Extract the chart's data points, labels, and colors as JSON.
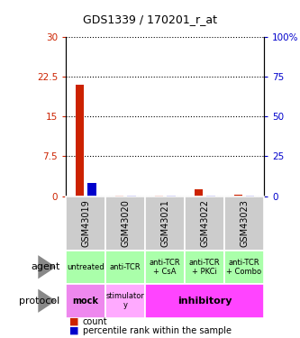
{
  "title": "GDS1339 / 170201_r_at",
  "samples": [
    "GSM43019",
    "GSM43020",
    "GSM43021",
    "GSM43022",
    "GSM43023"
  ],
  "count_values": [
    21.0,
    0.15,
    0.15,
    1.2,
    0.25
  ],
  "percentile_values": [
    8.5,
    0.4,
    0.3,
    0.5,
    0.4
  ],
  "left_ylim": [
    0,
    30
  ],
  "right_ylim": [
    0,
    100
  ],
  "left_ticks": [
    0,
    7.5,
    15,
    22.5,
    30
  ],
  "right_ticks": [
    0,
    25,
    50,
    75,
    100
  ],
  "left_tick_labels": [
    "0",
    "7.5",
    "15",
    "22.5",
    "30"
  ],
  "right_tick_labels": [
    "0",
    "25",
    "50",
    "75",
    "100%"
  ],
  "count_color": "#cc2200",
  "percentile_color": "#0000cc",
  "agent_labels": [
    "untreated",
    "anti-TCR",
    "anti-TCR\n+ CsA",
    "anti-TCR\n+ PKCi",
    "anti-TCR\n+ Combo"
  ],
  "agent_bg": "#aaffaa",
  "sample_bg": "#cccccc",
  "protocol_mock_bg": "#ee88ee",
  "protocol_stim_bg": "#ffaaff",
  "protocol_inhib_bg": "#ff44ff",
  "left_label_color": "#cc2200",
  "right_label_color": "#0000cc"
}
